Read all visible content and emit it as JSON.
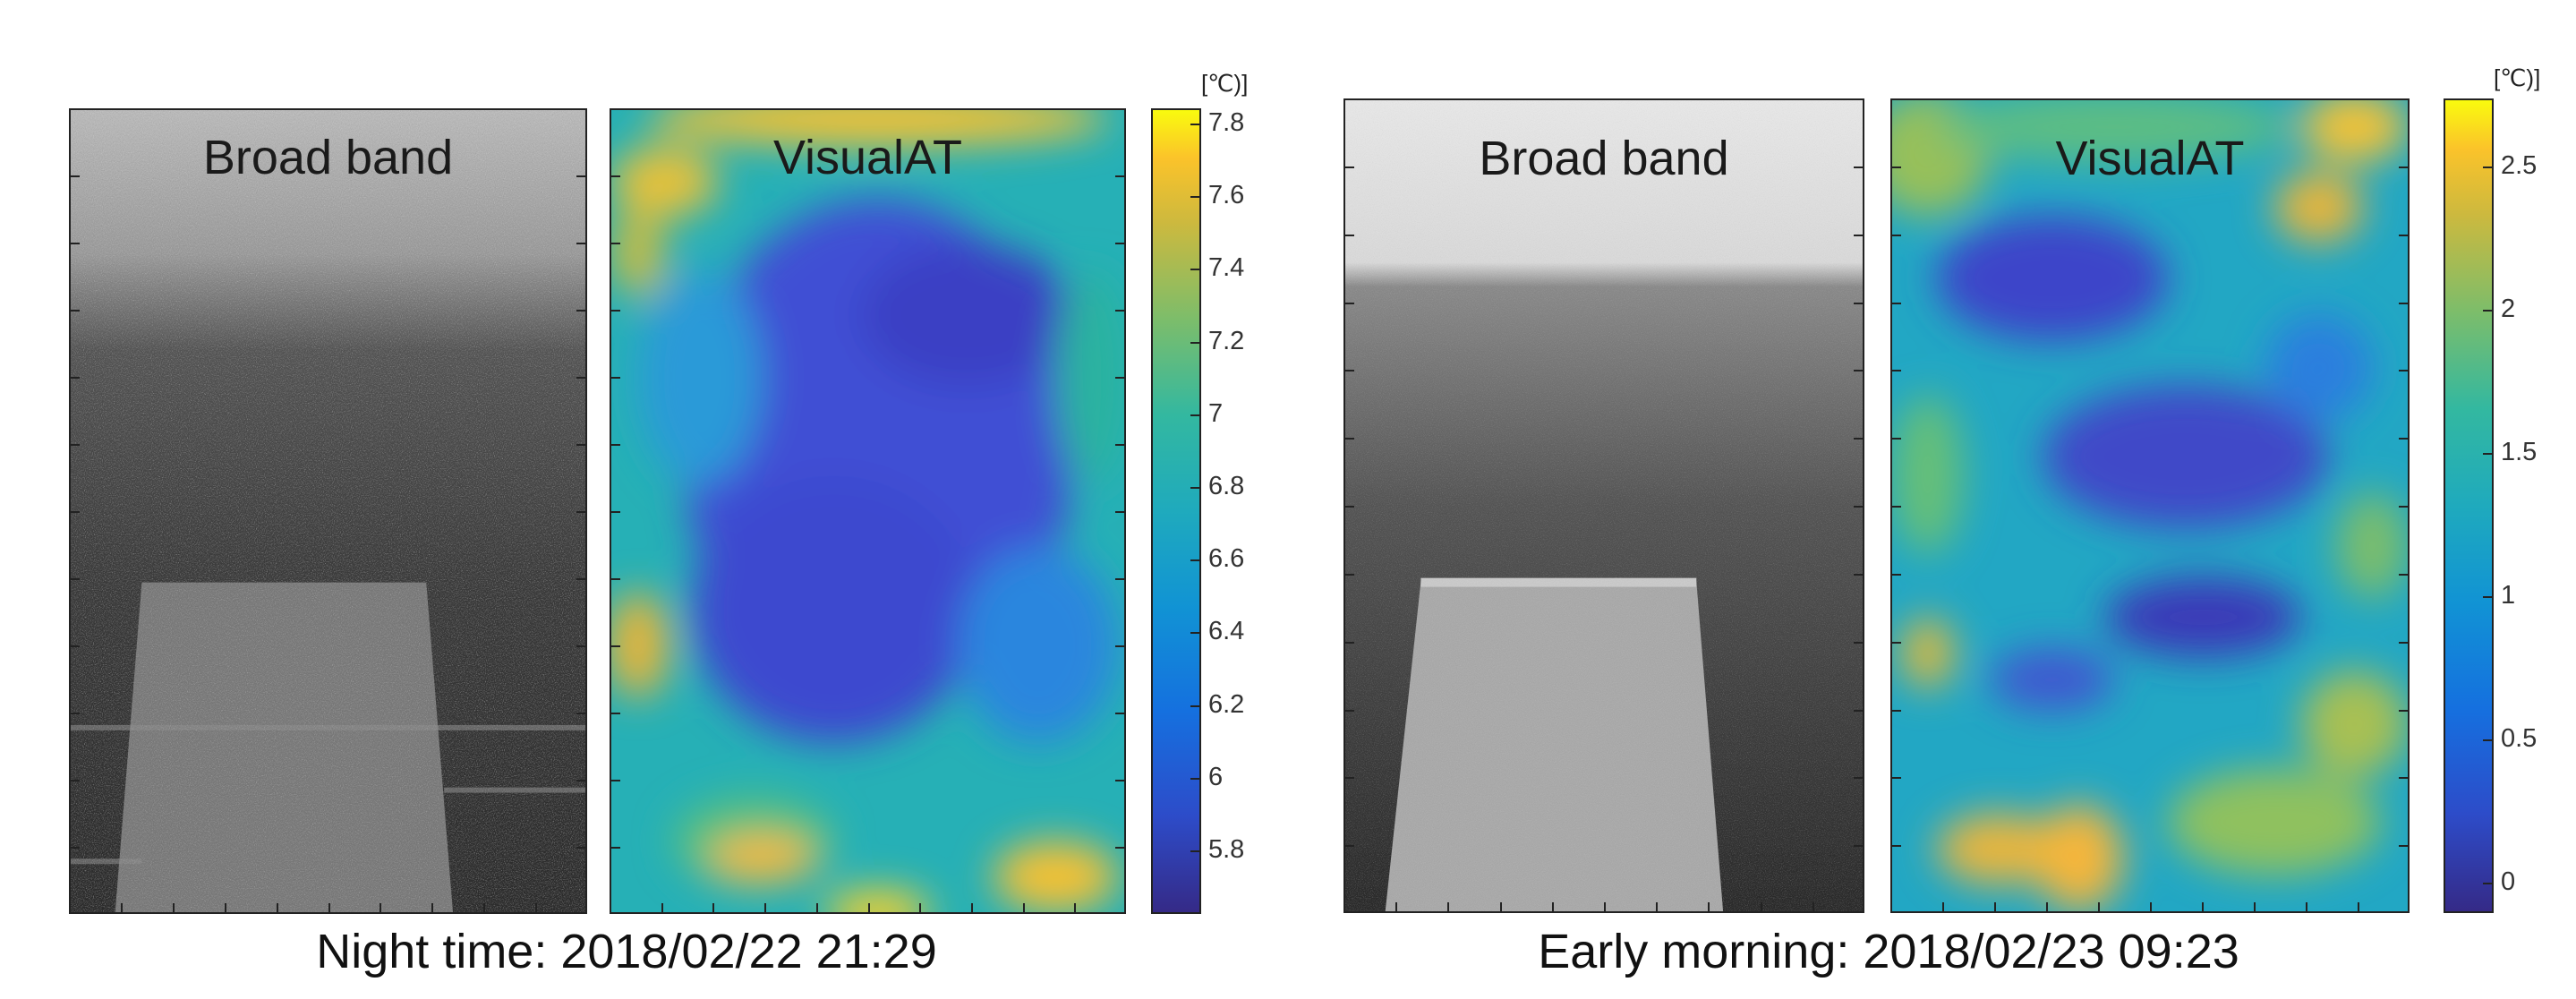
{
  "figure": {
    "left_group": {
      "broad_band_title": "Broad band",
      "visualat_title": "VisualAT",
      "colorbar": {
        "unit": "[℃)]",
        "ticks": [
          "7.8",
          "7.6",
          "7.4",
          "7.2",
          "7",
          "6.8",
          "6.6",
          "6.4",
          "6.2",
          "6",
          "5.8"
        ]
      },
      "caption": "Night time: 2018/02/22 21:29"
    },
    "right_group": {
      "broad_band_title": "Broad band",
      "visualat_title": "VisualAT",
      "colorbar": {
        "unit": "[℃)]",
        "ticks": [
          "2.5",
          "2",
          "1.5",
          "1",
          "0.5",
          "0"
        ]
      },
      "caption": "Early morning: 2018/02/23 09:23"
    },
    "colors": {
      "parula_low": "#352a87",
      "parula_mid": "#26b4a7",
      "parula_high": "#f9fb0e",
      "frame": "#222222"
    }
  }
}
